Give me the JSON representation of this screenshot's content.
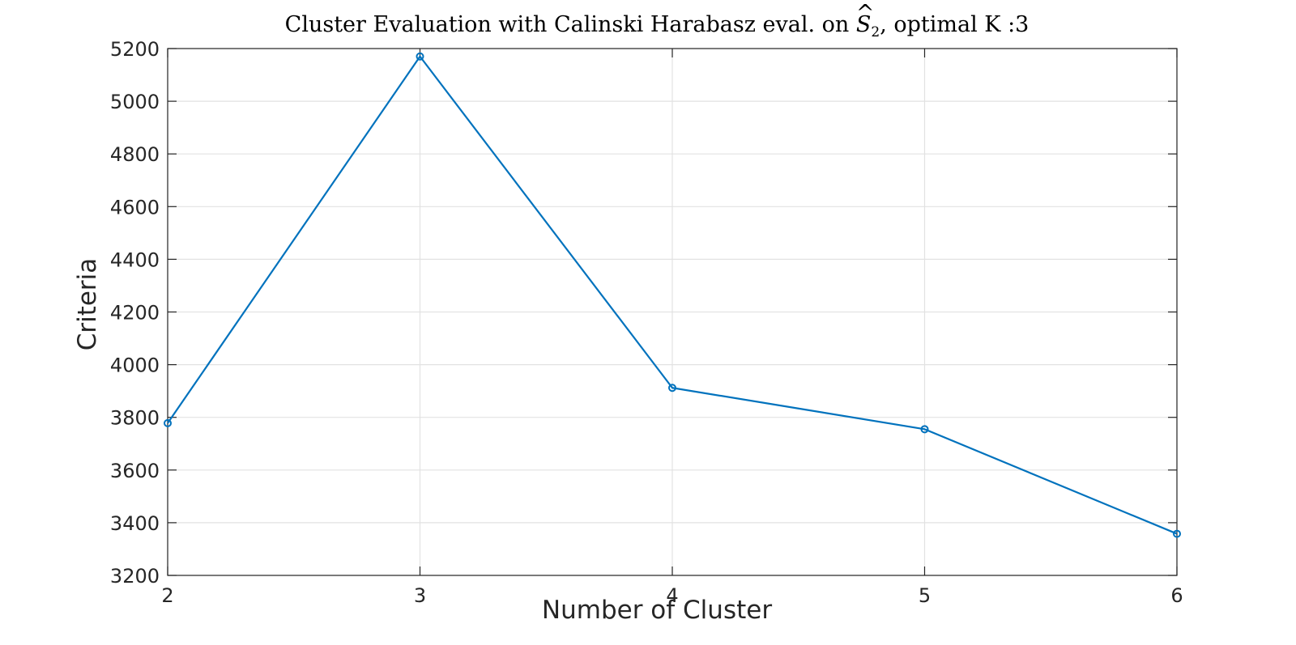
{
  "chart_data": {
    "type": "line",
    "title": "Cluster Evaluation with Calinski Harabasz eval. on Ŝ₂, optimal K :3",
    "title_parts": {
      "prefix": "Cluster Evaluation with Calinski Harabasz eval. on ",
      "symbol": "S",
      "hat": "^",
      "subscript": "2",
      "suffix": ", optimal K :3"
    },
    "xlabel": "Number of Cluster",
    "ylabel": "Criteria",
    "x": [
      2,
      3,
      4,
      5,
      6
    ],
    "series": [
      {
        "values": [
          3778,
          5170,
          3912,
          3755,
          3358
        ],
        "color": "#0072BD",
        "marker": "circle"
      }
    ],
    "xlim": [
      2,
      6
    ],
    "ylim": [
      3200,
      5200
    ],
    "xticks": [
      2,
      3,
      4,
      5,
      6
    ],
    "yticks": [
      3200,
      3400,
      3600,
      3800,
      4000,
      4200,
      4400,
      4600,
      4800,
      5000,
      5200
    ],
    "grid": true,
    "legend": "none"
  }
}
